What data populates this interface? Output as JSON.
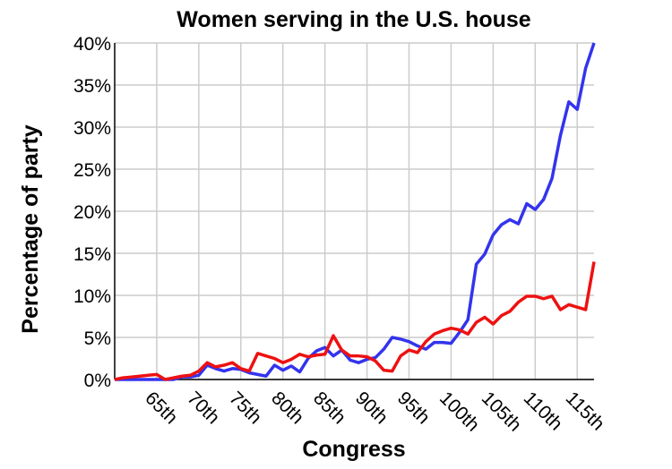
{
  "chart_data": {
    "type": "line",
    "title": "Women serving in the U.S. house",
    "xlabel": "Congress",
    "ylabel": "Percentage of party",
    "x": [
      60,
      61,
      62,
      63,
      64,
      65,
      66,
      67,
      68,
      69,
      70,
      71,
      72,
      73,
      74,
      75,
      76,
      77,
      78,
      79,
      80,
      81,
      82,
      83,
      84,
      85,
      86,
      87,
      88,
      89,
      90,
      91,
      92,
      93,
      94,
      95,
      96,
      97,
      98,
      99,
      100,
      101,
      102,
      103,
      104,
      105,
      106,
      107,
      108,
      109,
      110,
      111,
      112,
      113,
      114,
      115,
      116,
      117
    ],
    "series": [
      {
        "color": "#3333ee",
        "values": [
          0,
          0,
          0,
          0,
          0,
          0,
          0,
          0,
          0.3,
          0.3,
          0.5,
          1.7,
          1.3,
          1.0,
          1.3,
          1.2,
          0.8,
          0.6,
          0.4,
          1.7,
          1.1,
          1.6,
          0.9,
          2.5,
          3.4,
          3.8,
          2.8,
          3.5,
          2.3,
          2.0,
          2.4,
          2.6,
          3.6,
          5.0,
          4.8,
          4.5,
          4.0,
          3.6,
          4.4,
          4.4,
          4.3,
          5.6,
          7.1,
          13.7,
          14.9,
          17.2,
          18.4,
          19.0,
          18.5,
          20.9,
          20.2,
          21.4,
          23.9,
          29.0,
          33.0,
          32.1,
          37.0,
          40.0
        ]
      },
      {
        "color": "#ee1111",
        "values": [
          0,
          0.2,
          0.3,
          0.4,
          0.5,
          0.6,
          0,
          0.2,
          0.4,
          0.5,
          1.0,
          2.0,
          1.5,
          1.7,
          2.0,
          1.3,
          1.0,
          3.1,
          2.8,
          2.5,
          2.0,
          2.4,
          3.0,
          2.7,
          2.9,
          3.0,
          5.2,
          3.5,
          2.8,
          2.8,
          2.7,
          2.2,
          1.1,
          1.0,
          2.8,
          3.5,
          3.2,
          4.5,
          5.4,
          5.8,
          6.1,
          5.9,
          5.4,
          6.8,
          7.4,
          6.6,
          7.6,
          8.1,
          9.2,
          9.9,
          9.9,
          9.6,
          9.9,
          8.3,
          8.9,
          8.6,
          8.3,
          14.0
        ]
      }
    ],
    "xlim": [
      60,
      117
    ],
    "xticks": [
      {
        "value": 65,
        "label": "65th"
      },
      {
        "value": 70,
        "label": "70th"
      },
      {
        "value": 75,
        "label": "75th"
      },
      {
        "value": 80,
        "label": "80th"
      },
      {
        "value": 85,
        "label": "85th"
      },
      {
        "value": 90,
        "label": "90th"
      },
      {
        "value": 95,
        "label": "95th"
      },
      {
        "value": 100,
        "label": "100th"
      },
      {
        "value": 105,
        "label": "105th"
      },
      {
        "value": 110,
        "label": "110th"
      },
      {
        "value": 115,
        "label": "115th"
      }
    ],
    "ylim": [
      0,
      40
    ],
    "yticks": [
      {
        "value": 0,
        "label": "0%"
      },
      {
        "value": 5,
        "label": "5%"
      },
      {
        "value": 10,
        "label": "10%"
      },
      {
        "value": 15,
        "label": "15%"
      },
      {
        "value": 20,
        "label": "20%"
      },
      {
        "value": 25,
        "label": "25%"
      },
      {
        "value": 30,
        "label": "30%"
      },
      {
        "value": 35,
        "label": "35%"
      },
      {
        "value": 40,
        "label": "40%"
      }
    ],
    "grid": true
  }
}
